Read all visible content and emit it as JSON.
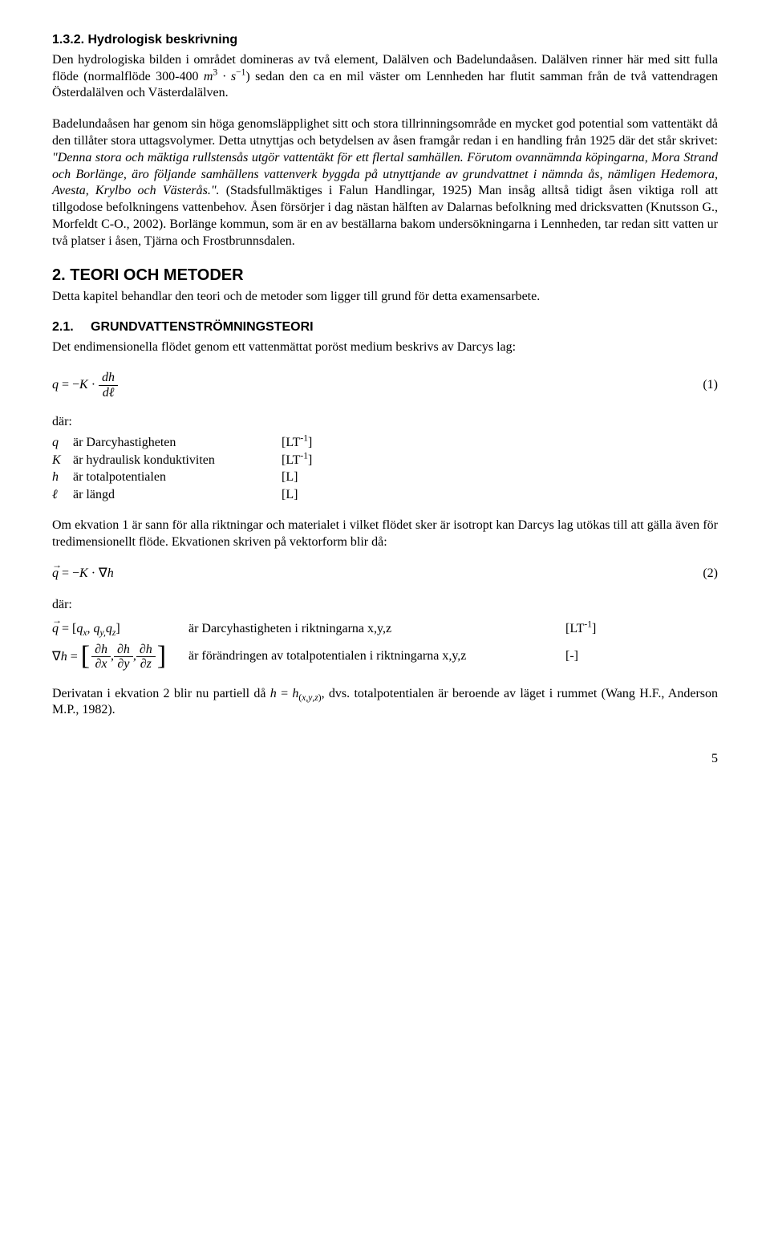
{
  "section132": {
    "heading": "1.3.2. Hydrologisk beskrivning",
    "para1_a": "Den hydrologiska bilden i området domineras av två element, Dalälven och Badelundaåsen. Dalälven rinner här med sitt fulla flöde (normalflöde 300-400 ",
    "para1_b": ") sedan den ca en mil väster om Lennheden har flutit samman från de två vattendragen Österdalälven och Västerdalälven.",
    "para2_a": "Badelundaåsen har genom sin höga genomsläpplighet sitt och stora tillrinningsområde en mycket god potential som vattentäkt då den tillåter stora uttagsvolymer. Detta utnyttjas och betydelsen av åsen framgår redan i en handling från 1925 där det står skrivet: ",
    "quote": "\"Denna stora och mäktiga rullstensås utgör vattentäkt för ett flertal samhällen. Förutom ovannämnda köpingarna, Mora Strand och Borlänge, äro följande samhällens vattenverk byggda på utnyttjande av grundvattnet i nämnda ås, nämligen Hedemora, Avesta, Krylbo och Västerås.\".",
    "para2_b": " (Stadsfullmäktiges i Falun Handlingar, 1925) Man insåg alltså tidigt åsen viktiga roll att tillgodose befolkningens vattenbehov. Åsen försörjer i dag nästan hälften av Dalarnas befolkning med dricksvatten (Knutsson G., Morfeldt C-O., 2002). Borlänge kommun, som är en av beställarna bakom undersökningarna i Lennheden, tar redan sitt vatten ur två platser i åsen, Tjärna och Frostbrunnsdalen."
  },
  "section2": {
    "heading": "2. TEORI OCH METODER",
    "para": "Detta kapitel behandlar den teori och de metoder som ligger till grund för detta examensarbete."
  },
  "section21": {
    "num": "2.1.",
    "title": "GRUNDVATTENSTRÖMNINGSTEORI",
    "para": "Det endimensionella flödet genom ett vattenmättat poröst medium beskrivs av Darcys lag:"
  },
  "eq1_num": "(1)",
  "dar": "där:",
  "defs1": {
    "q": {
      "sym": "q",
      "desc": "är Darcyhastigheten",
      "unit_a": "[LT",
      "unit_sup": "-1",
      "unit_b": "]"
    },
    "K": {
      "sym": "K",
      "desc": "är  hydraulisk konduktiviten",
      "unit_a": "[LT",
      "unit_sup": "-1",
      "unit_b": "]"
    },
    "h": {
      "sym": "h",
      "desc": "är totalpotentialen",
      "unit": "[L]"
    },
    "l": {
      "sym": "ℓ",
      "desc": "är längd",
      "unit": "[L]"
    }
  },
  "para_eq2": "Om ekvation 1 är sann för alla riktningar och materialet i vilket flödet sker är isotropt kan Darcys lag utökas till att gälla även för tredimensionellt flöde. Ekvationen skriven på vektorform blir då:",
  "eq2_num": "(2)",
  "defs2": {
    "q": {
      "desc": "är Darcyhastigheten i riktningarna x,y,z",
      "unit_a": "[LT",
      "unit_sup": "-1",
      "unit_b": "]"
    },
    "gradh": {
      "desc": "är förändringen av totalpotentialen i riktningarna x,y,z",
      "unit": "[-]"
    }
  },
  "last_para_a": "Derivatan i ekvation 2 blir nu partiell då ",
  "last_para_b": ", dvs. totalpotentialen är beroende av läget i rummet (Wang H.F., Anderson M.P., 1982).",
  "page_number": "5"
}
